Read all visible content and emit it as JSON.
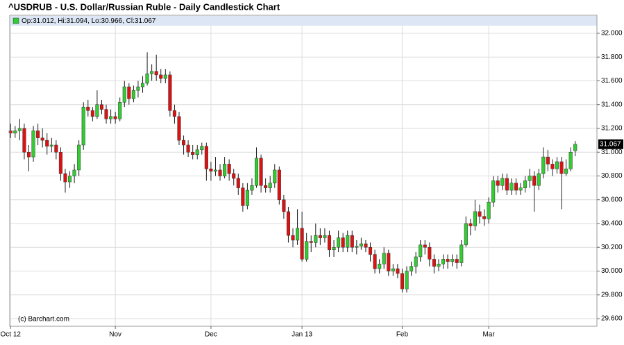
{
  "chart_data": {
    "type": "candlestick",
    "title": "^USDRUB - U.S. Dollar/Russian Ruble - Daily Candlestick Chart",
    "legend": "Op:31.012, Hi:31.094, Lo:30.966, Cl:31.067",
    "watermark": "(c) Barchart.com",
    "up_color": "#33cc33",
    "down_color": "#dd1111",
    "grid": true,
    "ylim": [
      29.536,
      32.064
    ],
    "yticks": [
      {
        "value": 29.6,
        "label": "29.600"
      },
      {
        "value": 29.8,
        "label": "29.800"
      },
      {
        "value": 30.0,
        "label": "30.000"
      },
      {
        "value": 30.2,
        "label": "30.200"
      },
      {
        "value": 30.4,
        "label": "30.400"
      },
      {
        "value": 30.6,
        "label": "30.600"
      },
      {
        "value": 30.8,
        "label": "30.800"
      },
      {
        "value": 31.0,
        "label": "31.000"
      },
      {
        "value": 31.2,
        "label": "31.200"
      },
      {
        "value": 31.4,
        "label": "31.400"
      },
      {
        "value": 31.6,
        "label": "31.600"
      },
      {
        "value": 31.8,
        "label": "31.800"
      },
      {
        "value": 32.0,
        "label": "32.000"
      }
    ],
    "categories": [
      "Oct 12",
      null,
      null,
      null,
      null,
      null,
      null,
      null,
      null,
      null,
      null,
      null,
      null,
      null,
      null,
      null,
      null,
      null,
      null,
      null,
      null,
      null,
      null,
      "Nov",
      null,
      null,
      null,
      null,
      null,
      null,
      null,
      null,
      null,
      null,
      null,
      null,
      null,
      null,
      null,
      null,
      null,
      null,
      null,
      null,
      "Dec",
      null,
      null,
      null,
      null,
      null,
      null,
      null,
      null,
      null,
      null,
      null,
      null,
      null,
      null,
      null,
      null,
      null,
      null,
      null,
      "Jan 13",
      null,
      null,
      null,
      null,
      null,
      null,
      null,
      null,
      null,
      null,
      null,
      null,
      null,
      null,
      null,
      null,
      null,
      null,
      null,
      null,
      null,
      "Feb",
      null,
      null,
      null,
      null,
      null,
      null,
      null,
      null,
      null,
      null,
      null,
      null,
      null,
      null,
      null,
      null,
      null,
      null,
      "Mar",
      null,
      null,
      null,
      null,
      null,
      null,
      null,
      null,
      null,
      null,
      null,
      null,
      null,
      null,
      null,
      null,
      null,
      null,
      null
    ],
    "ohlc": [
      [
        31.18,
        31.24,
        31.12,
        31.16
      ],
      [
        31.16,
        31.22,
        31.12,
        31.18
      ],
      [
        31.18,
        31.28,
        31.1,
        31.2
      ],
      [
        31.2,
        31.24,
        30.94,
        31.0
      ],
      [
        31.0,
        31.06,
        30.84,
        30.96
      ],
      [
        30.96,
        31.22,
        30.92,
        31.18
      ],
      [
        31.18,
        31.24,
        31.06,
        31.12
      ],
      [
        31.12,
        31.2,
        31.04,
        31.1
      ],
      [
        31.1,
        31.16,
        30.98,
        31.05
      ],
      [
        31.05,
        31.12,
        31.0,
        31.06
      ],
      [
        31.06,
        31.1,
        30.94,
        31.0
      ],
      [
        31.0,
        31.04,
        30.76,
        30.82
      ],
      [
        30.82,
        30.86,
        30.66,
        30.75
      ],
      [
        30.75,
        30.84,
        30.7,
        30.8
      ],
      [
        30.8,
        30.9,
        30.74,
        30.85
      ],
      [
        30.85,
        31.1,
        30.8,
        31.06
      ],
      [
        31.06,
        31.42,
        31.02,
        31.38
      ],
      [
        31.38,
        31.44,
        31.3,
        31.35
      ],
      [
        31.35,
        31.38,
        31.26,
        31.3
      ],
      [
        31.3,
        31.52,
        31.28,
        31.4
      ],
      [
        31.4,
        31.44,
        31.32,
        31.36
      ],
      [
        31.36,
        31.4,
        31.24,
        31.28
      ],
      [
        31.28,
        31.36,
        31.24,
        31.3
      ],
      [
        31.3,
        31.34,
        31.24,
        31.28
      ],
      [
        31.28,
        31.46,
        31.26,
        31.42
      ],
      [
        31.42,
        31.6,
        31.38,
        31.55
      ],
      [
        31.55,
        31.58,
        31.4,
        31.45
      ],
      [
        31.45,
        31.56,
        31.42,
        31.52
      ],
      [
        31.52,
        31.6,
        31.46,
        31.55
      ],
      [
        31.55,
        31.64,
        31.5,
        31.58
      ],
      [
        31.58,
        31.84,
        31.56,
        31.66
      ],
      [
        31.66,
        31.74,
        31.6,
        31.68
      ],
      [
        31.68,
        31.82,
        31.6,
        31.65
      ],
      [
        31.65,
        31.7,
        31.58,
        31.62
      ],
      [
        31.62,
        31.7,
        31.58,
        31.65
      ],
      [
        31.65,
        31.68,
        31.3,
        31.35
      ],
      [
        31.35,
        31.4,
        31.24,
        31.3
      ],
      [
        31.3,
        31.34,
        31.06,
        31.1
      ],
      [
        31.1,
        31.14,
        30.98,
        31.06
      ],
      [
        31.06,
        31.1,
        30.96,
        31.0
      ],
      [
        31.0,
        31.06,
        30.94,
        30.98
      ],
      [
        30.98,
        31.06,
        30.94,
        31.02
      ],
      [
        31.02,
        31.08,
        30.98,
        31.05
      ],
      [
        31.05,
        31.08,
        30.76,
        30.86
      ],
      [
        30.86,
        30.92,
        30.76,
        30.84
      ],
      [
        30.84,
        30.96,
        30.8,
        30.85
      ],
      [
        30.85,
        30.9,
        30.76,
        30.8
      ],
      [
        30.8,
        30.96,
        30.78,
        30.9
      ],
      [
        30.9,
        30.94,
        30.76,
        30.82
      ],
      [
        30.82,
        30.86,
        30.72,
        30.78
      ],
      [
        30.78,
        30.82,
        30.64,
        30.7
      ],
      [
        30.7,
        30.74,
        30.5,
        30.55
      ],
      [
        30.55,
        30.74,
        30.52,
        30.68
      ],
      [
        30.68,
        30.78,
        30.64,
        30.72
      ],
      [
        30.72,
        31.04,
        30.7,
        30.95
      ],
      [
        30.95,
        30.98,
        30.66,
        30.72
      ],
      [
        30.72,
        30.78,
        30.66,
        30.7
      ],
      [
        30.7,
        30.8,
        30.66,
        30.74
      ],
      [
        30.74,
        30.9,
        30.7,
        30.85
      ],
      [
        30.85,
        30.88,
        30.56,
        30.6
      ],
      [
        30.6,
        30.64,
        30.44,
        30.5
      ],
      [
        30.5,
        30.54,
        30.24,
        30.3
      ],
      [
        30.3,
        30.36,
        30.2,
        30.26
      ],
      [
        30.26,
        30.52,
        30.22,
        30.36
      ],
      [
        30.36,
        30.5,
        30.08,
        30.1
      ],
      [
        30.1,
        30.32,
        30.08,
        30.25
      ],
      [
        30.25,
        30.3,
        30.16,
        30.24
      ],
      [
        30.24,
        30.4,
        30.2,
        30.3
      ],
      [
        30.3,
        30.36,
        30.22,
        30.28
      ],
      [
        30.28,
        30.36,
        30.24,
        30.3
      ],
      [
        30.3,
        30.34,
        30.12,
        30.18
      ],
      [
        30.18,
        30.26,
        30.12,
        30.2
      ],
      [
        30.2,
        30.34,
        30.16,
        30.28
      ],
      [
        30.28,
        30.32,
        30.16,
        30.2
      ],
      [
        30.2,
        30.34,
        30.16,
        30.3
      ],
      [
        30.3,
        30.34,
        30.16,
        30.2
      ],
      [
        30.2,
        30.26,
        30.14,
        30.21
      ],
      [
        30.21,
        30.28,
        30.18,
        30.23
      ],
      [
        30.23,
        30.26,
        30.16,
        30.2
      ],
      [
        30.2,
        30.24,
        30.08,
        30.14
      ],
      [
        30.14,
        30.18,
        29.98,
        30.02
      ],
      [
        30.02,
        30.1,
        29.98,
        30.06
      ],
      [
        30.06,
        30.2,
        30.02,
        30.15
      ],
      [
        30.15,
        30.18,
        29.96,
        30.0
      ],
      [
        30.0,
        30.06,
        29.96,
        30.02
      ],
      [
        30.02,
        30.06,
        29.94,
        29.98
      ],
      [
        29.98,
        30.02,
        29.82,
        29.85
      ],
      [
        29.85,
        30.04,
        29.82,
        30.0
      ],
      [
        30.0,
        30.08,
        29.96,
        30.04
      ],
      [
        30.04,
        30.16,
        29.98,
        30.12
      ],
      [
        30.12,
        30.26,
        30.08,
        30.22
      ],
      [
        30.22,
        30.26,
        30.14,
        30.2
      ],
      [
        30.2,
        30.24,
        30.04,
        30.1
      ],
      [
        30.1,
        30.14,
        29.98,
        30.04
      ],
      [
        30.04,
        30.1,
        30.0,
        30.06
      ],
      [
        30.06,
        30.14,
        30.02,
        30.1
      ],
      [
        30.1,
        30.14,
        30.02,
        30.08
      ],
      [
        30.08,
        30.14,
        30.04,
        30.1
      ],
      [
        30.1,
        30.14,
        30.02,
        30.07
      ],
      [
        30.07,
        30.26,
        30.04,
        30.22
      ],
      [
        30.22,
        30.46,
        30.2,
        30.4
      ],
      [
        30.4,
        30.44,
        30.3,
        30.38
      ],
      [
        30.38,
        30.6,
        30.34,
        30.5
      ],
      [
        30.5,
        30.56,
        30.4,
        30.46
      ],
      [
        30.46,
        30.52,
        30.38,
        30.44
      ],
      [
        30.44,
        30.62,
        30.4,
        30.58
      ],
      [
        30.58,
        30.8,
        30.54,
        30.76
      ],
      [
        30.76,
        30.8,
        30.66,
        30.72
      ],
      [
        30.72,
        30.82,
        30.68,
        30.78
      ],
      [
        30.78,
        30.82,
        30.64,
        30.68
      ],
      [
        30.68,
        30.78,
        30.64,
        30.74
      ],
      [
        30.74,
        30.78,
        30.64,
        30.68
      ],
      [
        30.68,
        30.74,
        30.64,
        30.7
      ],
      [
        30.7,
        30.8,
        30.66,
        30.76
      ],
      [
        30.76,
        30.86,
        30.7,
        30.8
      ],
      [
        30.8,
        30.84,
        30.5,
        30.72
      ],
      [
        30.72,
        30.86,
        30.68,
        30.82
      ],
      [
        30.82,
        31.04,
        30.78,
        30.96
      ],
      [
        30.96,
        31.02,
        30.84,
        30.9
      ],
      [
        30.9,
        30.94,
        30.8,
        30.86
      ],
      [
        30.86,
        30.96,
        30.82,
        30.92
      ],
      [
        30.92,
        30.96,
        30.52,
        30.82
      ],
      [
        30.82,
        30.94,
        30.8,
        30.86
      ],
      [
        30.86,
        31.04,
        30.84,
        31.0
      ],
      [
        31.012,
        31.094,
        30.966,
        31.067
      ]
    ]
  }
}
